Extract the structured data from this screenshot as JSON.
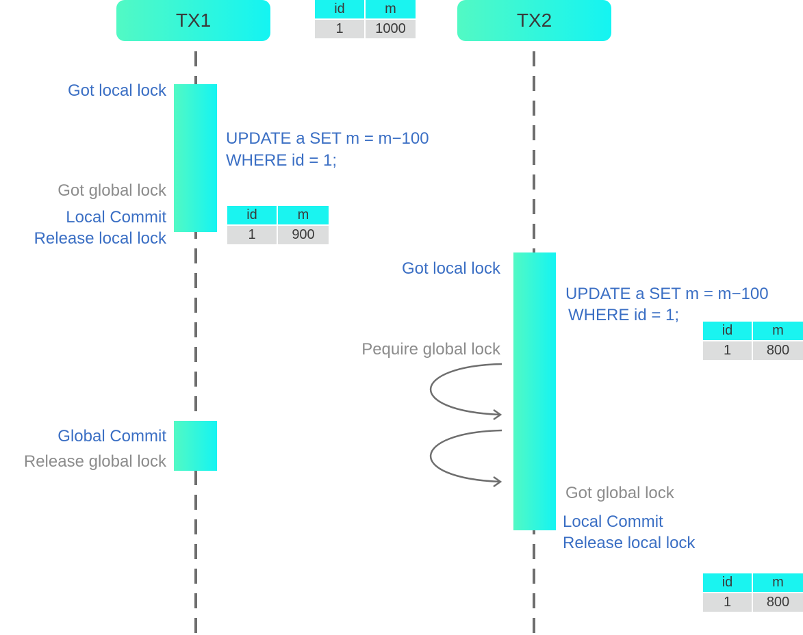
{
  "colors": {
    "gradient_start": "#52f9c4",
    "gradient_end": "#14f4f2",
    "blue_text": "#3b6fc4",
    "gray_text": "#8c8c8c",
    "table_header": "#1af4f0",
    "table_body": "#dcdddd"
  },
  "lanes": {
    "tx1": "TX1",
    "tx2": "TX2"
  },
  "tables": [
    {
      "headers": [
        "id",
        "m"
      ],
      "row": [
        "1",
        "1000"
      ]
    },
    {
      "headers": [
        "id",
        "m"
      ],
      "row": [
        "1",
        "900"
      ]
    },
    {
      "headers": [
        "id",
        "m"
      ],
      "row": [
        "1",
        "800"
      ]
    },
    {
      "headers": [
        "id",
        "m"
      ],
      "row": [
        "1",
        "800"
      ]
    }
  ],
  "tx1": {
    "got_local_lock": "Got local lock",
    "sql_line1": "UPDATE a SET m = m−100",
    "sql_line2": "WHERE id = 1;",
    "got_global_lock": "Got global lock",
    "local_commit": "Local Commit",
    "release_local_lock": "Release local lock",
    "global_commit": "Global Commit",
    "release_global_lock": "Release global lock"
  },
  "tx2": {
    "got_local_lock": "Got local lock",
    "sql_line1": "UPDATE a SET m = m−100",
    "sql_line2": "WHERE id = 1;",
    "require_global_lock": "Pequire global lock",
    "got_global_lock": "Got global lock",
    "local_commit": "Local Commit",
    "release_local_lock": "Release local lock"
  }
}
